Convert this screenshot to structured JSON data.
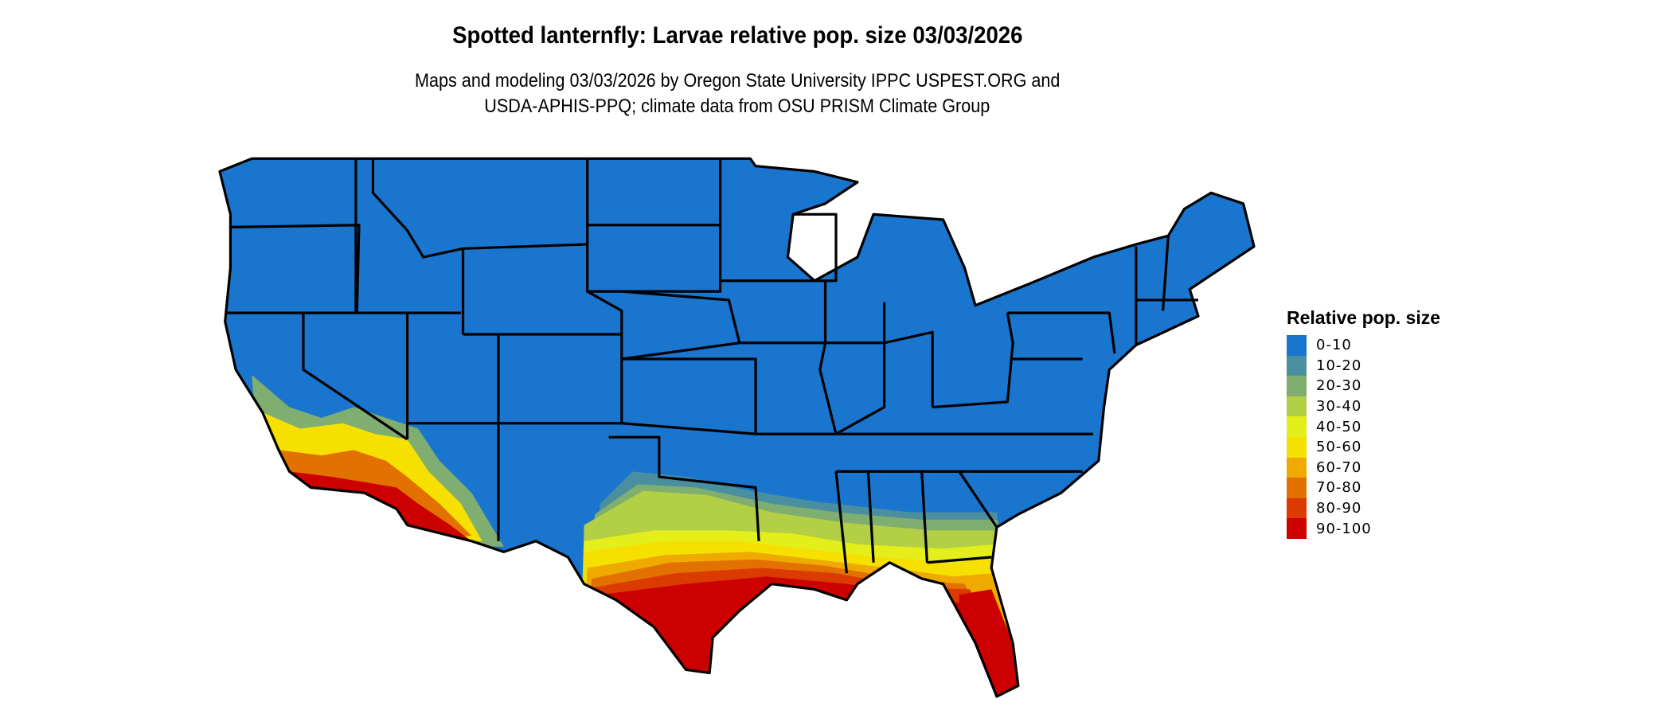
{
  "title": "Spotted lanternfly: Larvae relative pop. size 03/03/2026",
  "subtitle_line1": "Maps and modeling 03/03/2026 by Oregon State University IPPC USPEST.ORG and",
  "subtitle_line2": "USDA-APHIS-PPQ; climate data from OSU PRISM Climate Group",
  "chart_data": {
    "type": "heatmap",
    "title": "Spotted lanternfly: Larvae relative pop. size 03/03/2026",
    "region": "Contiguous United States (state boundaries)",
    "legend": {
      "title": "Relative pop. size",
      "placement": "right",
      "entries": [
        {
          "label": "0-10",
          "color": "#1a75cf"
        },
        {
          "label": "10-20",
          "color": "#4a8f9f"
        },
        {
          "label": "20-30",
          "color": "#7fae70"
        },
        {
          "label": "30-40",
          "color": "#b2cf45"
        },
        {
          "label": "40-50",
          "color": "#e4ee1a"
        },
        {
          "label": "50-60",
          "color": "#f6e000"
        },
        {
          "label": "60-70",
          "color": "#efaa00"
        },
        {
          "label": "70-80",
          "color": "#e37100"
        },
        {
          "label": "80-90",
          "color": "#db3a00"
        },
        {
          "label": "90-100",
          "color": "#cc0000"
        }
      ]
    }
  }
}
